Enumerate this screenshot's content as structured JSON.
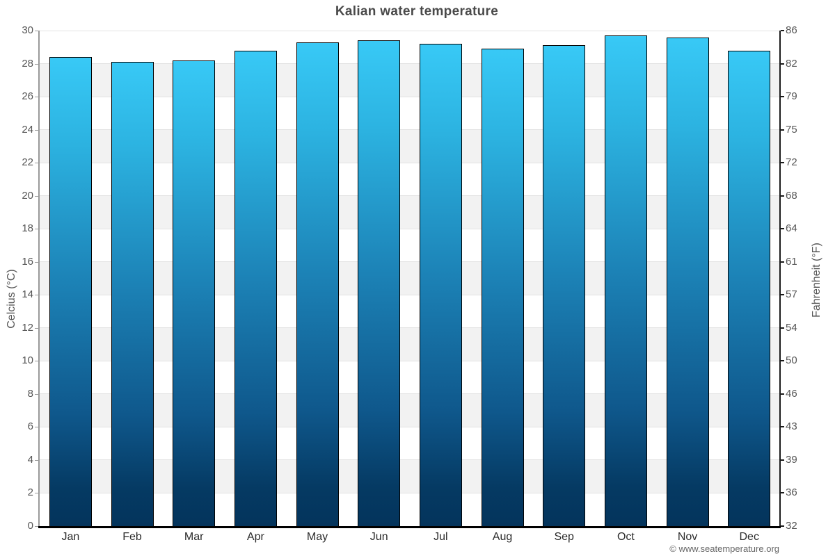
{
  "chart_data": {
    "type": "bar",
    "title": "Kalian water temperature",
    "categories": [
      "Jan",
      "Feb",
      "Mar",
      "Apr",
      "May",
      "Jun",
      "Jul",
      "Aug",
      "Sep",
      "Oct",
      "Nov",
      "Dec"
    ],
    "values": [
      28.4,
      28.1,
      28.2,
      28.8,
      29.3,
      29.4,
      29.2,
      28.9,
      29.1,
      29.7,
      29.6,
      28.8
    ],
    "unit": "°C",
    "xlabel": "",
    "ylabel_left": "Celcius (°C)",
    "ylabel_right": "Fahrenheit (°F)",
    "ylim": [
      0,
      30
    ],
    "ytick_step_celsius": 2,
    "yticks_left": [
      "30",
      "28",
      "26",
      "24",
      "22",
      "20",
      "18",
      "16",
      "14",
      "12",
      "10",
      "8",
      "6",
      "4",
      "2",
      "0"
    ],
    "yticks_right": [
      "86",
      "82",
      "79",
      "75",
      "72",
      "68",
      "64",
      "61",
      "57",
      "54",
      "50",
      "46",
      "43",
      "39",
      "36",
      "32"
    ],
    "legend": "none",
    "grid": "horizontal alternating bands every 2°C",
    "band_color_odd": "#f2f2f2",
    "band_color_even": "#ffffff",
    "gridline_color": "#e2e2e2",
    "bar_border_color": "#000000",
    "bar_gradient_top": "#38c9f6",
    "bar_gradient_mid": "#1c82b6",
    "bar_gradient_bottom": "#04345c",
    "title_color": "#4a4a4a",
    "axis_label_color": "#555555"
  },
  "footer": {
    "credit": "© www.seatemperature.org"
  }
}
